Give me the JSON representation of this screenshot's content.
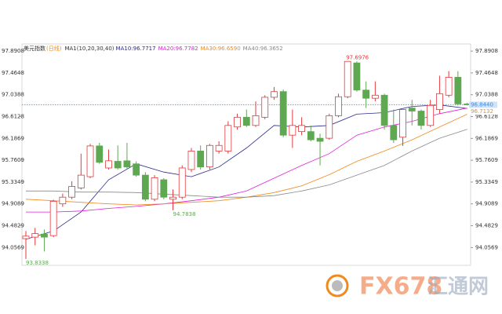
{
  "chart_data": {
    "type": "candlestick",
    "title": "美元指数",
    "title_suffix": "(日线)",
    "indicator": "MA1(10,20,30,40)",
    "ylim": [
      93.71,
      98.03
    ],
    "yticks": [
      97.8908,
      97.4648,
      97.0388,
      96.6128,
      96.1869,
      95.7609,
      95.3349,
      94.9089,
      94.4829,
      94.0569
    ],
    "up_color": "#e5393b",
    "down_color": "#5fa852",
    "candles": {
      "open": [
        94.23,
        94.26,
        94.32,
        94.29,
        94.91,
        95.04,
        95.22,
        95.44,
        96.04,
        95.61,
        95.74,
        95.75,
        95.69,
        95.47,
        95.0,
        95.38,
        95.0,
        95.04,
        95.58,
        95.94,
        95.63,
        95.94,
        95.94,
        96.41,
        96.6,
        96.44,
        96.6,
        96.99,
        97.1,
        96.25,
        96.32,
        96.32,
        96.19,
        96.19,
        96.63,
        97.0,
        97.66,
        97.13,
        96.97,
        97.03,
        96.44,
        96.21,
        96.78,
        96.72,
        96.44,
        96.75,
        97.03,
        97.38,
        96.86
      ],
      "high": [
        94.38,
        94.44,
        94.41,
        94.99,
        95.11,
        95.35,
        95.89,
        96.08,
        96.1,
        95.97,
        96.05,
        96.1,
        95.74,
        95.53,
        95.47,
        95.41,
        95.19,
        95.66,
        96.0,
        96.05,
        96.08,
        96.13,
        96.52,
        96.67,
        96.75,
        96.91,
        97.03,
        97.19,
        97.14,
        96.75,
        96.6,
        96.44,
        96.28,
        96.67,
        97.06,
        97.6976,
        97.69,
        97.3,
        97.3,
        97.06,
        96.75,
        96.75,
        96.94,
        96.75,
        96.94,
        97.41,
        97.5,
        97.5,
        96.88
      ],
      "low": [
        93.8338,
        94.1,
        93.98,
        94.26,
        94.85,
        95.0,
        95.19,
        95.41,
        95.69,
        95.58,
        95.58,
        95.6,
        95.44,
        94.96,
        94.96,
        95.0,
        94.7838,
        95.0,
        95.53,
        95.58,
        95.58,
        95.89,
        95.89,
        96.36,
        96.41,
        96.41,
        96.56,
        96.94,
        96.21,
        96.0,
        96.25,
        96.13,
        95.66,
        96.16,
        96.6,
        96.97,
        97.1,
        96.78,
        96.91,
        96.36,
        96.1,
        96.04,
        96.44,
        96.36,
        96.41,
        96.67,
        96.99,
        96.83,
        96.83
      ],
      "close": [
        94.28,
        94.33,
        94.26,
        94.96,
        95.04,
        95.25,
        95.47,
        96.04,
        95.72,
        95.75,
        95.61,
        95.63,
        95.47,
        95.0,
        95.42,
        95.04,
        95.04,
        95.61,
        95.94,
        95.63,
        96.05,
        96.05,
        96.44,
        96.6,
        96.44,
        96.63,
        96.99,
        97.1,
        96.25,
        96.44,
        96.44,
        96.16,
        96.13,
        96.63,
        97.0,
        97.69,
        97.13,
        96.97,
        97.03,
        96.44,
        96.16,
        96.75,
        96.72,
        96.44,
        96.83,
        97.06,
        97.38,
        96.86,
        96.844
      ]
    },
    "series": [
      {
        "name": "MA10:96.7717",
        "color": "#2a2a8c",
        "x": [
          0,
          3,
          6,
          9,
          12,
          15,
          18,
          21,
          24,
          27,
          30,
          33,
          36,
          39,
          42,
          45,
          48
        ],
        "values": [
          94.22,
          94.38,
          94.75,
          95.38,
          95.69,
          95.53,
          95.44,
          95.63,
          96.0,
          96.44,
          96.41,
          96.44,
          96.66,
          96.69,
          96.81,
          96.84,
          96.7717
        ]
      },
      {
        "name": "MA20:96.7782",
        "color": "#e020d8",
        "x": [
          0,
          3,
          6,
          9,
          12,
          15,
          18,
          21,
          24,
          27,
          30,
          33,
          36,
          39,
          42,
          45,
          48
        ],
        "values": [
          94.75,
          94.75,
          94.77,
          94.82,
          94.86,
          94.91,
          94.97,
          95.04,
          95.16,
          95.41,
          95.66,
          95.89,
          96.25,
          96.41,
          96.52,
          96.67,
          96.7782
        ]
      },
      {
        "name": "MA30:96.6590",
        "color": "#f08a1e",
        "x": [
          0,
          3,
          6,
          9,
          12,
          15,
          18,
          21,
          24,
          27,
          30,
          33,
          36,
          39,
          42,
          45,
          48
        ],
        "values": [
          95.0,
          94.97,
          94.94,
          94.91,
          94.89,
          94.91,
          94.94,
          94.97,
          95.04,
          95.13,
          95.26,
          95.48,
          95.74,
          95.94,
          96.16,
          96.41,
          96.659
        ]
      },
      {
        "name": "MA40:96.3652",
        "color": "#8a8a8a",
        "x": [
          0,
          3,
          6,
          9,
          12,
          15,
          18,
          21,
          24,
          27,
          30,
          33,
          36,
          39,
          42,
          45,
          48
        ],
        "values": [
          95.16,
          95.16,
          95.14,
          95.14,
          95.13,
          95.1,
          95.07,
          95.04,
          95.04,
          95.07,
          95.16,
          95.28,
          95.47,
          95.66,
          95.94,
          96.19,
          96.3652
        ]
      }
    ],
    "price_tags": [
      {
        "value": 96.844,
        "label": "96.8440",
        "color": "#3b8ee8"
      },
      {
        "value": 96.7132,
        "label": "96.7132",
        "color": "#f08a1e"
      }
    ]
  },
  "watermark": {
    "brand": "FX678",
    "name": "汇通网"
  }
}
